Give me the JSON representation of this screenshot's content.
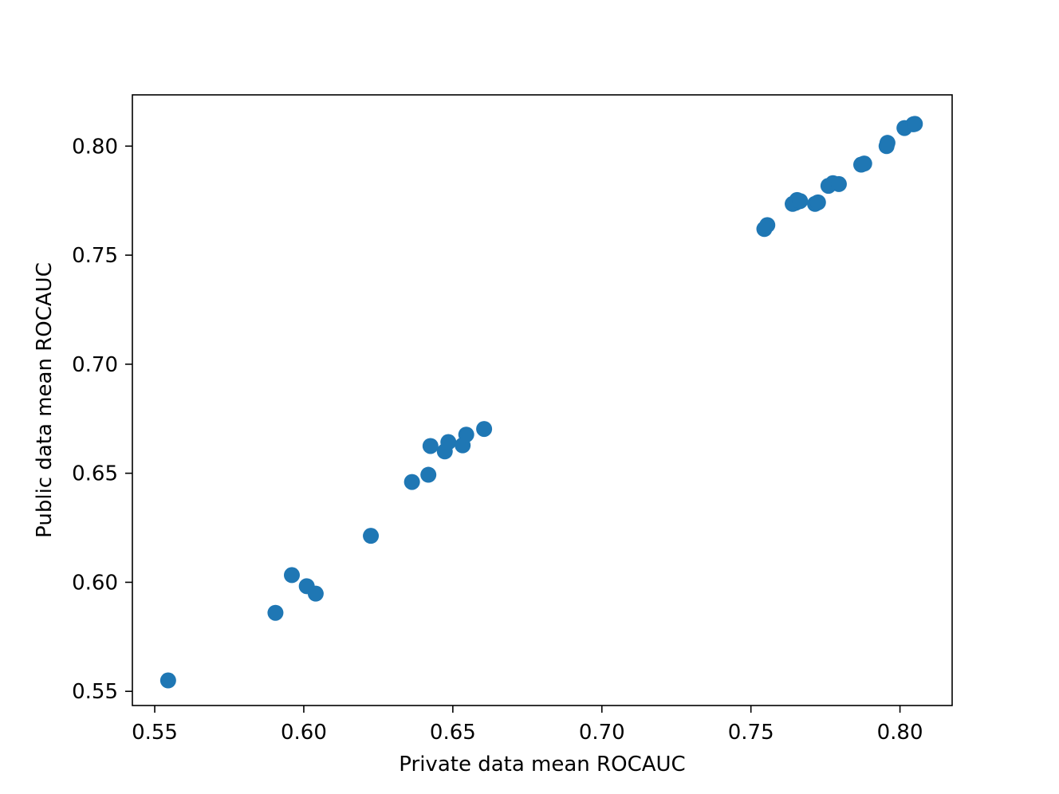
{
  "chart_data": {
    "type": "scatter",
    "title": "",
    "xlabel": "Private data mean ROCAUC",
    "ylabel": "Public data mean ROCAUC",
    "xlim": [
      0.5425,
      0.8175
    ],
    "ylim": [
      0.5435,
      0.8235
    ],
    "xticks": [
      0.55,
      0.6,
      0.65,
      0.7,
      0.75,
      0.8
    ],
    "xtick_labels": [
      "0.55",
      "0.60",
      "0.65",
      "0.70",
      "0.75",
      "0.80"
    ],
    "yticks": [
      0.55,
      0.6,
      0.65,
      0.7,
      0.75,
      0.8
    ],
    "ytick_labels": [
      "0.55",
      "0.60",
      "0.65",
      "0.70",
      "0.75",
      "0.80"
    ],
    "grid": false,
    "legend": "none",
    "color": "#1f77b4",
    "series": [
      {
        "x": [
          0.5545,
          0.5905,
          0.596,
          0.601,
          0.604,
          0.6225,
          0.6363,
          0.6418,
          0.6425,
          0.6473,
          0.6485,
          0.6533,
          0.6545,
          0.6605,
          0.7545,
          0.7555,
          0.764,
          0.765,
          0.7655,
          0.7665,
          0.7715,
          0.7725,
          0.776,
          0.7775,
          0.7795,
          0.787,
          0.788,
          0.7955,
          0.7958,
          0.8015,
          0.8045,
          0.805
        ],
        "y": [
          0.555,
          0.586,
          0.6033,
          0.5982,
          0.5948,
          0.6213,
          0.646,
          0.6493,
          0.6625,
          0.66,
          0.6643,
          0.6628,
          0.6677,
          0.6703,
          0.762,
          0.7638,
          0.7735,
          0.774,
          0.7753,
          0.7748,
          0.7735,
          0.7742,
          0.7818,
          0.783,
          0.7826,
          0.7915,
          0.792,
          0.8,
          0.8015,
          0.8083,
          0.81,
          0.8102
        ]
      }
    ]
  }
}
